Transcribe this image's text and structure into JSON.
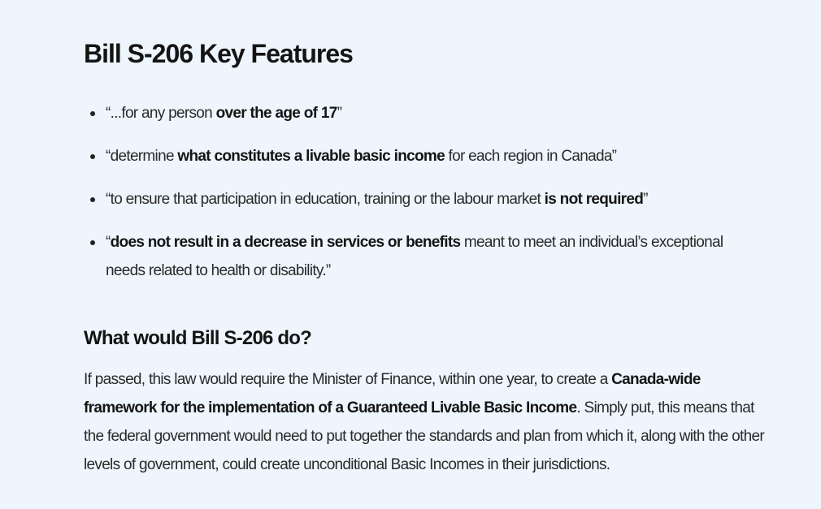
{
  "title": "Bill S-206 Key Features",
  "features": [
    {
      "pre": "“...for any person ",
      "bold": "over the age of 17",
      "post": "”"
    },
    {
      "pre": "“determine ",
      "bold": "what constitutes a livable basic income",
      "post": " for each region in Canada”"
    },
    {
      "pre": "“to ensure that participation in education, training or the labour market ",
      "bold": "is not required",
      "post": "”"
    },
    {
      "pre": "“",
      "bold": "does not result in a decrease in services or benefits",
      "post": " meant to meet an individual’s exceptional needs related to health or disability.”"
    }
  ],
  "section": {
    "heading": "What would Bill S-206 do?",
    "pre": "If passed, this law would require the Minister of Finance, within one year, to create a ",
    "bold": "Canada-wide framework for the implementation of a Guaranteed Livable Basic Income",
    "post": ". Simply put, this means that the federal government would need to put together the standards and plan from which it, along with the other levels of government, could create unconditional Basic Incomes in their jurisdictions."
  }
}
